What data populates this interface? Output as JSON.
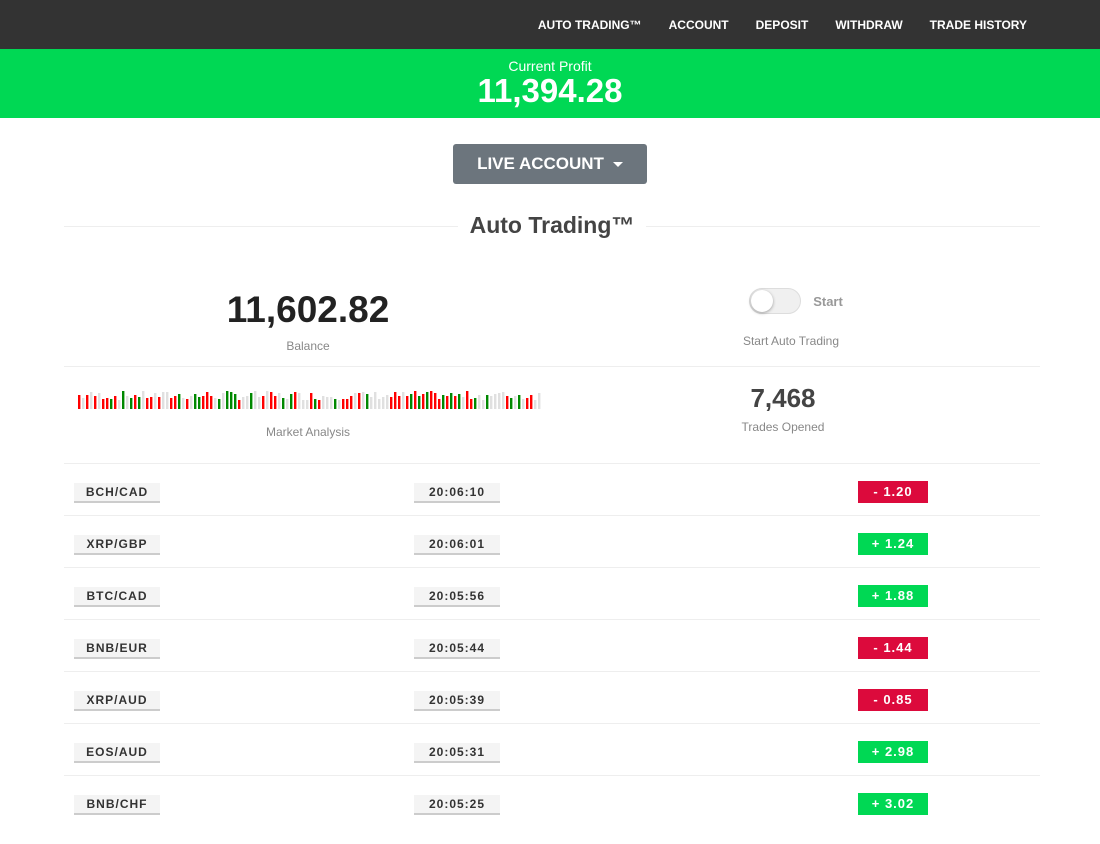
{
  "nav": [
    "AUTO TRADING™",
    "ACCOUNT",
    "DEPOSIT",
    "WITHDRAW",
    "TRADE HISTORY"
  ],
  "profit": {
    "label": "Current Profit",
    "value": "11,394.28"
  },
  "account_button": "LIVE ACCOUNT",
  "section_title": "Auto Trading™",
  "balance": {
    "value": "11,602.82",
    "label": "Balance"
  },
  "toggle": {
    "label": "Start",
    "caption": "Start Auto Trading",
    "on": false
  },
  "market": {
    "label": "Market Analysis"
  },
  "trades": {
    "value": "7,468",
    "label": "Trades Opened"
  },
  "colors": {
    "up": "#00d854",
    "down": "#dc0a3c",
    "bar_up": "#008800",
    "bar_down": "#ff0000",
    "bar_neutral": "#e0e0e0"
  },
  "rows": [
    {
      "pair": "BCH/CAD",
      "time": "20:06:10",
      "pl": "- 1.20",
      "dir": "down"
    },
    {
      "pair": "XRP/GBP",
      "time": "20:06:01",
      "pl": "+ 1.24",
      "dir": "up"
    },
    {
      "pair": "BTC/CAD",
      "time": "20:05:56",
      "pl": "+ 1.88",
      "dir": "up"
    },
    {
      "pair": "BNB/EUR",
      "time": "20:05:44",
      "pl": "- 1.44",
      "dir": "down"
    },
    {
      "pair": "XRP/AUD",
      "time": "20:05:39",
      "pl": "- 0.85",
      "dir": "down"
    },
    {
      "pair": "EOS/AUD",
      "time": "20:05:31",
      "pl": "+ 2.98",
      "dir": "up"
    },
    {
      "pair": "BNB/CHF",
      "time": "20:05:25",
      "pl": "+ 3.02",
      "dir": "up"
    }
  ]
}
